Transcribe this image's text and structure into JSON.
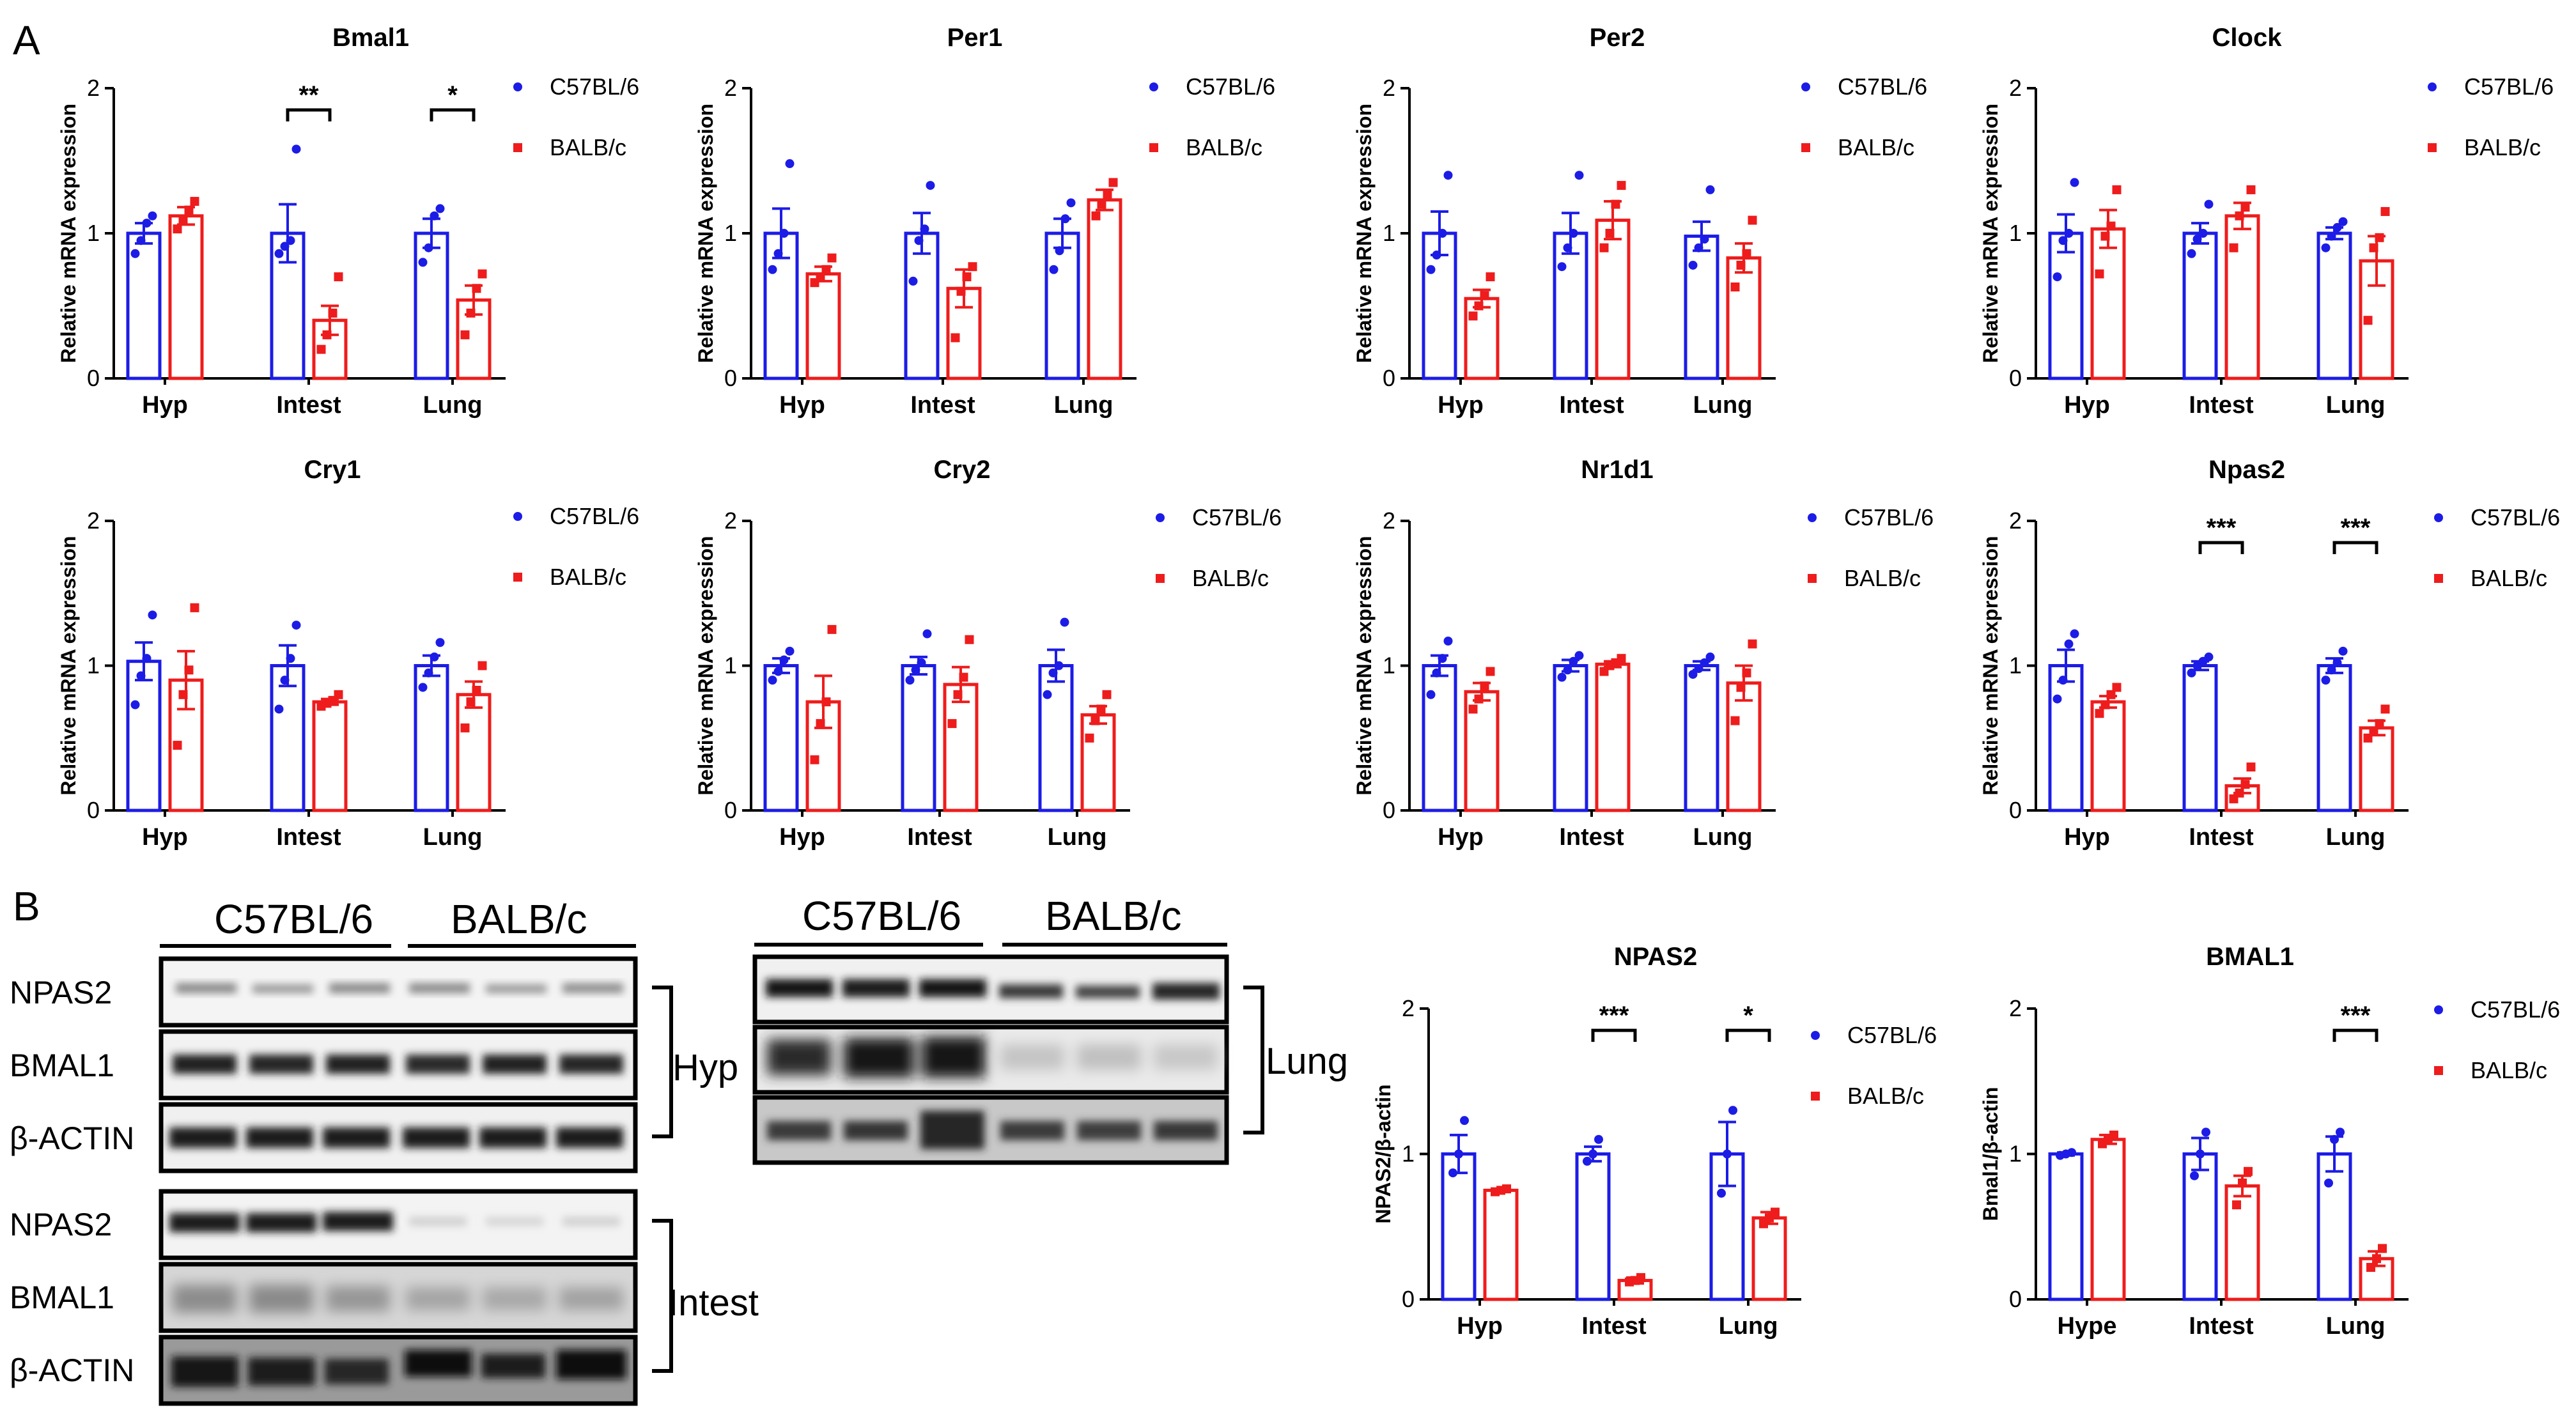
{
  "panels": {
    "a": "A",
    "b": "B"
  },
  "colors": {
    "c57": "#1c1ce6",
    "balb": "#ee1c1c",
    "axis": "#000000"
  },
  "legend_labels": {
    "c57": "C57BL/6",
    "balb": "BALB/c"
  },
  "western_blot": {
    "groups": [
      "C57BL/6",
      "BALB/c"
    ],
    "hyp_rows": [
      "NPAS2",
      "BMAL1",
      "β-ACTIN"
    ],
    "intest_rows": [
      "NPAS2",
      "BMAL1",
      "β-ACTIN"
    ],
    "tissues": {
      "hyp": "Hyp",
      "intest": "Intest",
      "lung": "Lung"
    }
  },
  "chart_data": [
    {
      "type": "bar",
      "title": "Bmal1",
      "ylabel": "Relative mRNA expression",
      "categories": [
        "Hyp",
        "Intest",
        "Lung"
      ],
      "ylim": [
        0,
        2
      ],
      "yticks": [
        0,
        1,
        2
      ],
      "series": [
        {
          "name": "C57BL/6",
          "values": [
            1.0,
            1.0,
            1.0
          ],
          "sem": [
            0.07,
            0.2,
            0.1
          ],
          "points": [
            [
              0.86,
              0.95,
              1.07,
              1.12
            ],
            [
              0.86,
              0.91,
              0.95,
              1.58
            ],
            [
              0.8,
              0.9,
              1.12,
              1.17
            ]
          ]
        },
        {
          "name": "BALB/c",
          "values": [
            1.12,
            0.4,
            0.54
          ],
          "sem": [
            0.06,
            0.1,
            0.1
          ],
          "points": [
            [
              1.03,
              1.09,
              1.16,
              1.22
            ],
            [
              0.2,
              0.3,
              0.45,
              0.7
            ],
            [
              0.3,
              0.45,
              0.62,
              0.72
            ]
          ]
        }
      ],
      "significance": [
        {
          "category": "Intest",
          "label": "**"
        },
        {
          "category": "Lung",
          "label": "*"
        }
      ]
    },
    {
      "type": "bar",
      "title": "Per1",
      "ylabel": "Relative mRNA expression",
      "categories": [
        "Hyp",
        "Intest",
        "Lung"
      ],
      "ylim": [
        0,
        2
      ],
      "yticks": [
        0,
        1,
        2
      ],
      "series": [
        {
          "name": "C57BL/6",
          "values": [
            1.0,
            1.0,
            1.0
          ],
          "sem": [
            0.17,
            0.14,
            0.1
          ],
          "points": [
            [
              0.75,
              0.86,
              1.0,
              1.48
            ],
            [
              0.67,
              0.95,
              1.03,
              1.33
            ],
            [
              0.75,
              0.88,
              1.1,
              1.21
            ]
          ]
        },
        {
          "name": "BALB/c",
          "values": [
            0.72,
            0.62,
            1.23
          ],
          "sem": [
            0.05,
            0.13,
            0.07
          ],
          "points": [
            [
              0.66,
              0.7,
              0.75,
              0.83
            ],
            [
              0.28,
              0.6,
              0.7,
              0.77
            ],
            [
              1.12,
              1.2,
              1.27,
              1.35
            ]
          ]
        }
      ],
      "significance": []
    },
    {
      "type": "bar",
      "title": "Per2",
      "ylabel": "Relative mRNA expression",
      "categories": [
        "Hyp",
        "Intest",
        "Lung"
      ],
      "ylim": [
        0,
        2
      ],
      "yticks": [
        0,
        1,
        2
      ],
      "series": [
        {
          "name": "C57BL/6",
          "values": [
            1.0,
            1.0,
            0.98
          ],
          "sem": [
            0.15,
            0.14,
            0.1
          ],
          "points": [
            [
              0.75,
              0.85,
              1.0,
              1.4
            ],
            [
              0.77,
              0.9,
              1.0,
              1.4
            ],
            [
              0.78,
              0.9,
              0.96,
              1.3
            ]
          ]
        },
        {
          "name": "BALB/c",
          "values": [
            0.55,
            1.09,
            0.83
          ],
          "sem": [
            0.06,
            0.13,
            0.1
          ],
          "points": [
            [
              0.43,
              0.5,
              0.57,
              0.7
            ],
            [
              0.9,
              1.0,
              1.2,
              1.33
            ],
            [
              0.63,
              0.78,
              0.86,
              1.09
            ]
          ]
        }
      ],
      "significance": []
    },
    {
      "type": "bar",
      "title": "Clock",
      "ylabel": "Relative mRNA expression",
      "categories": [
        "Hyp",
        "Intest",
        "Lung"
      ],
      "ylim": [
        0,
        2
      ],
      "yticks": [
        0,
        1,
        2
      ],
      "series": [
        {
          "name": "C57BL/6",
          "values": [
            1.0,
            1.0,
            1.0
          ],
          "sem": [
            0.13,
            0.07,
            0.04
          ],
          "points": [
            [
              0.7,
              0.95,
              1.0,
              1.35
            ],
            [
              0.86,
              0.96,
              1.0,
              1.2
            ],
            [
              0.9,
              0.98,
              1.04,
              1.08
            ]
          ]
        },
        {
          "name": "BALB/c",
          "values": [
            1.03,
            1.12,
            0.81
          ],
          "sem": [
            0.13,
            0.09,
            0.17
          ],
          "points": [
            [
              0.72,
              0.98,
              1.05,
              1.3
            ],
            [
              0.9,
              1.12,
              1.18,
              1.3
            ],
            [
              0.4,
              0.9,
              0.97,
              1.15
            ]
          ]
        }
      ],
      "significance": []
    },
    {
      "type": "bar",
      "title": "Cry1",
      "ylabel": "Relative mRNA expression",
      "categories": [
        "Hyp",
        "Intest",
        "Lung"
      ],
      "ylim": [
        0,
        2
      ],
      "yticks": [
        0,
        1,
        2
      ],
      "series": [
        {
          "name": "C57BL/6",
          "values": [
            1.03,
            1.0,
            1.0
          ],
          "sem": [
            0.13,
            0.14,
            0.07
          ],
          "points": [
            [
              0.73,
              0.93,
              1.05,
              1.35
            ],
            [
              0.7,
              0.9,
              1.05,
              1.28
            ],
            [
              0.85,
              0.95,
              1.06,
              1.16
            ]
          ]
        },
        {
          "name": "BALB/c",
          "values": [
            0.9,
            0.75,
            0.8
          ],
          "sem": [
            0.2,
            0.02,
            0.09
          ],
          "points": [
            [
              0.45,
              0.8,
              0.97,
              1.4
            ],
            [
              0.72,
              0.74,
              0.76,
              0.8
            ],
            [
              0.57,
              0.75,
              0.83,
              1.0
            ]
          ]
        }
      ],
      "significance": []
    },
    {
      "type": "bar",
      "title": "Cry2",
      "ylabel": "Relative mRNA expression",
      "categories": [
        "Hyp",
        "Intest",
        "Lung"
      ],
      "ylim": [
        0,
        2
      ],
      "yticks": [
        0,
        1,
        2
      ],
      "series": [
        {
          "name": "C57BL/6",
          "values": [
            1.0,
            1.0,
            1.0
          ],
          "sem": [
            0.05,
            0.06,
            0.11
          ],
          "points": [
            [
              0.9,
              0.96,
              1.04,
              1.1
            ],
            [
              0.9,
              0.97,
              1.02,
              1.22
            ],
            [
              0.8,
              0.95,
              1.0,
              1.3
            ]
          ]
        },
        {
          "name": "BALB/c",
          "values": [
            0.75,
            0.87,
            0.66
          ],
          "sem": [
            0.18,
            0.12,
            0.06
          ],
          "points": [
            [
              0.35,
              0.6,
              0.75,
              1.25
            ],
            [
              0.6,
              0.8,
              0.92,
              1.18
            ],
            [
              0.5,
              0.62,
              0.7,
              0.8
            ]
          ]
        }
      ],
      "significance": []
    },
    {
      "type": "bar",
      "title": "Nr1d1",
      "ylabel": "Relative mRNA expression",
      "categories": [
        "Hyp",
        "Intest",
        "Lung"
      ],
      "ylim": [
        0,
        2
      ],
      "yticks": [
        0,
        1,
        2
      ],
      "series": [
        {
          "name": "C57BL/6",
          "values": [
            1.0,
            1.0,
            1.0
          ],
          "sem": [
            0.07,
            0.04,
            0.03
          ],
          "points": [
            [
              0.8,
              0.95,
              1.05,
              1.17
            ],
            [
              0.92,
              0.97,
              1.03,
              1.07
            ],
            [
              0.94,
              0.98,
              1.02,
              1.06
            ]
          ]
        },
        {
          "name": "BALB/c",
          "values": [
            0.82,
            1.01,
            0.88
          ],
          "sem": [
            0.06,
            0.02,
            0.12
          ],
          "points": [
            [
              0.7,
              0.77,
              0.86,
              0.96
            ],
            [
              0.96,
              1.0,
              1.02,
              1.05
            ],
            [
              0.62,
              0.85,
              0.95,
              1.15
            ]
          ]
        }
      ],
      "significance": []
    },
    {
      "type": "bar",
      "title": "Npas2",
      "ylabel": "Relative mRNA expression",
      "categories": [
        "Hyp",
        "Intest",
        "Lung"
      ],
      "ylim": [
        0,
        2
      ],
      "yticks": [
        0,
        1,
        2
      ],
      "series": [
        {
          "name": "C57BL/6",
          "values": [
            1.0,
            1.0,
            1.0
          ],
          "sem": [
            0.11,
            0.03,
            0.05
          ],
          "points": [
            [
              0.77,
              0.9,
              1.15,
              1.22
            ],
            [
              0.95,
              1.0,
              1.03,
              1.06
            ],
            [
              0.9,
              0.97,
              1.02,
              1.1
            ]
          ]
        },
        {
          "name": "BALB/c",
          "values": [
            0.75,
            0.17,
            0.57
          ],
          "sem": [
            0.04,
            0.05,
            0.05
          ],
          "points": [
            [
              0.67,
              0.73,
              0.8,
              0.85
            ],
            [
              0.08,
              0.12,
              0.18,
              0.3
            ],
            [
              0.5,
              0.55,
              0.6,
              0.7
            ]
          ]
        }
      ],
      "significance": [
        {
          "category": "Intest",
          "label": "***"
        },
        {
          "category": "Lung",
          "label": "***"
        }
      ]
    },
    {
      "type": "bar",
      "title": "NPAS2",
      "ylabel": "NPAS2/β-actin",
      "categories": [
        "Hyp",
        "Intest",
        "Lung"
      ],
      "ylim": [
        0,
        2
      ],
      "yticks": [
        0,
        1,
        2
      ],
      "series": [
        {
          "name": "C57BL/6",
          "values": [
            1.0,
            1.0,
            1.0
          ],
          "sem": [
            0.13,
            0.05,
            0.22
          ],
          "points": [
            [
              0.87,
              1.0,
              1.23
            ],
            [
              0.95,
              1.0,
              1.1
            ],
            [
              0.73,
              1.0,
              1.3
            ]
          ]
        },
        {
          "name": "BALB/c",
          "values": [
            0.75,
            0.13,
            0.56
          ],
          "sem": [
            0.01,
            0.02,
            0.04
          ],
          "points": [
            [
              0.74,
              0.75,
              0.76
            ],
            [
              0.12,
              0.13,
              0.15
            ],
            [
              0.52,
              0.56,
              0.6
            ]
          ]
        }
      ],
      "significance": [
        {
          "category": "Intest",
          "label": "***"
        },
        {
          "category": "Lung",
          "label": "*"
        }
      ]
    },
    {
      "type": "bar",
      "title": "BMAL1",
      "ylabel": "Bmal1/β-actin",
      "categories": [
        "Hype",
        "Intest",
        "Lung"
      ],
      "ylim": [
        0,
        2
      ],
      "yticks": [
        0,
        1,
        2
      ],
      "series": [
        {
          "name": "C57BL/6",
          "values": [
            1.0,
            1.0,
            1.0
          ],
          "sem": [
            0.01,
            0.11,
            0.12
          ],
          "points": [
            [
              0.99,
              1.0,
              1.01
            ],
            [
              0.85,
              1.0,
              1.15
            ],
            [
              0.8,
              1.1,
              1.15
            ]
          ]
        },
        {
          "name": "BALB/c",
          "values": [
            1.1,
            0.78,
            0.28
          ],
          "sem": [
            0.03,
            0.07,
            0.05
          ],
          "points": [
            [
              1.07,
              1.1,
              1.13
            ],
            [
              0.65,
              0.8,
              0.88
            ],
            [
              0.22,
              0.28,
              0.35
            ]
          ]
        }
      ],
      "significance": [
        {
          "category": "Lung",
          "label": "***"
        }
      ]
    }
  ]
}
